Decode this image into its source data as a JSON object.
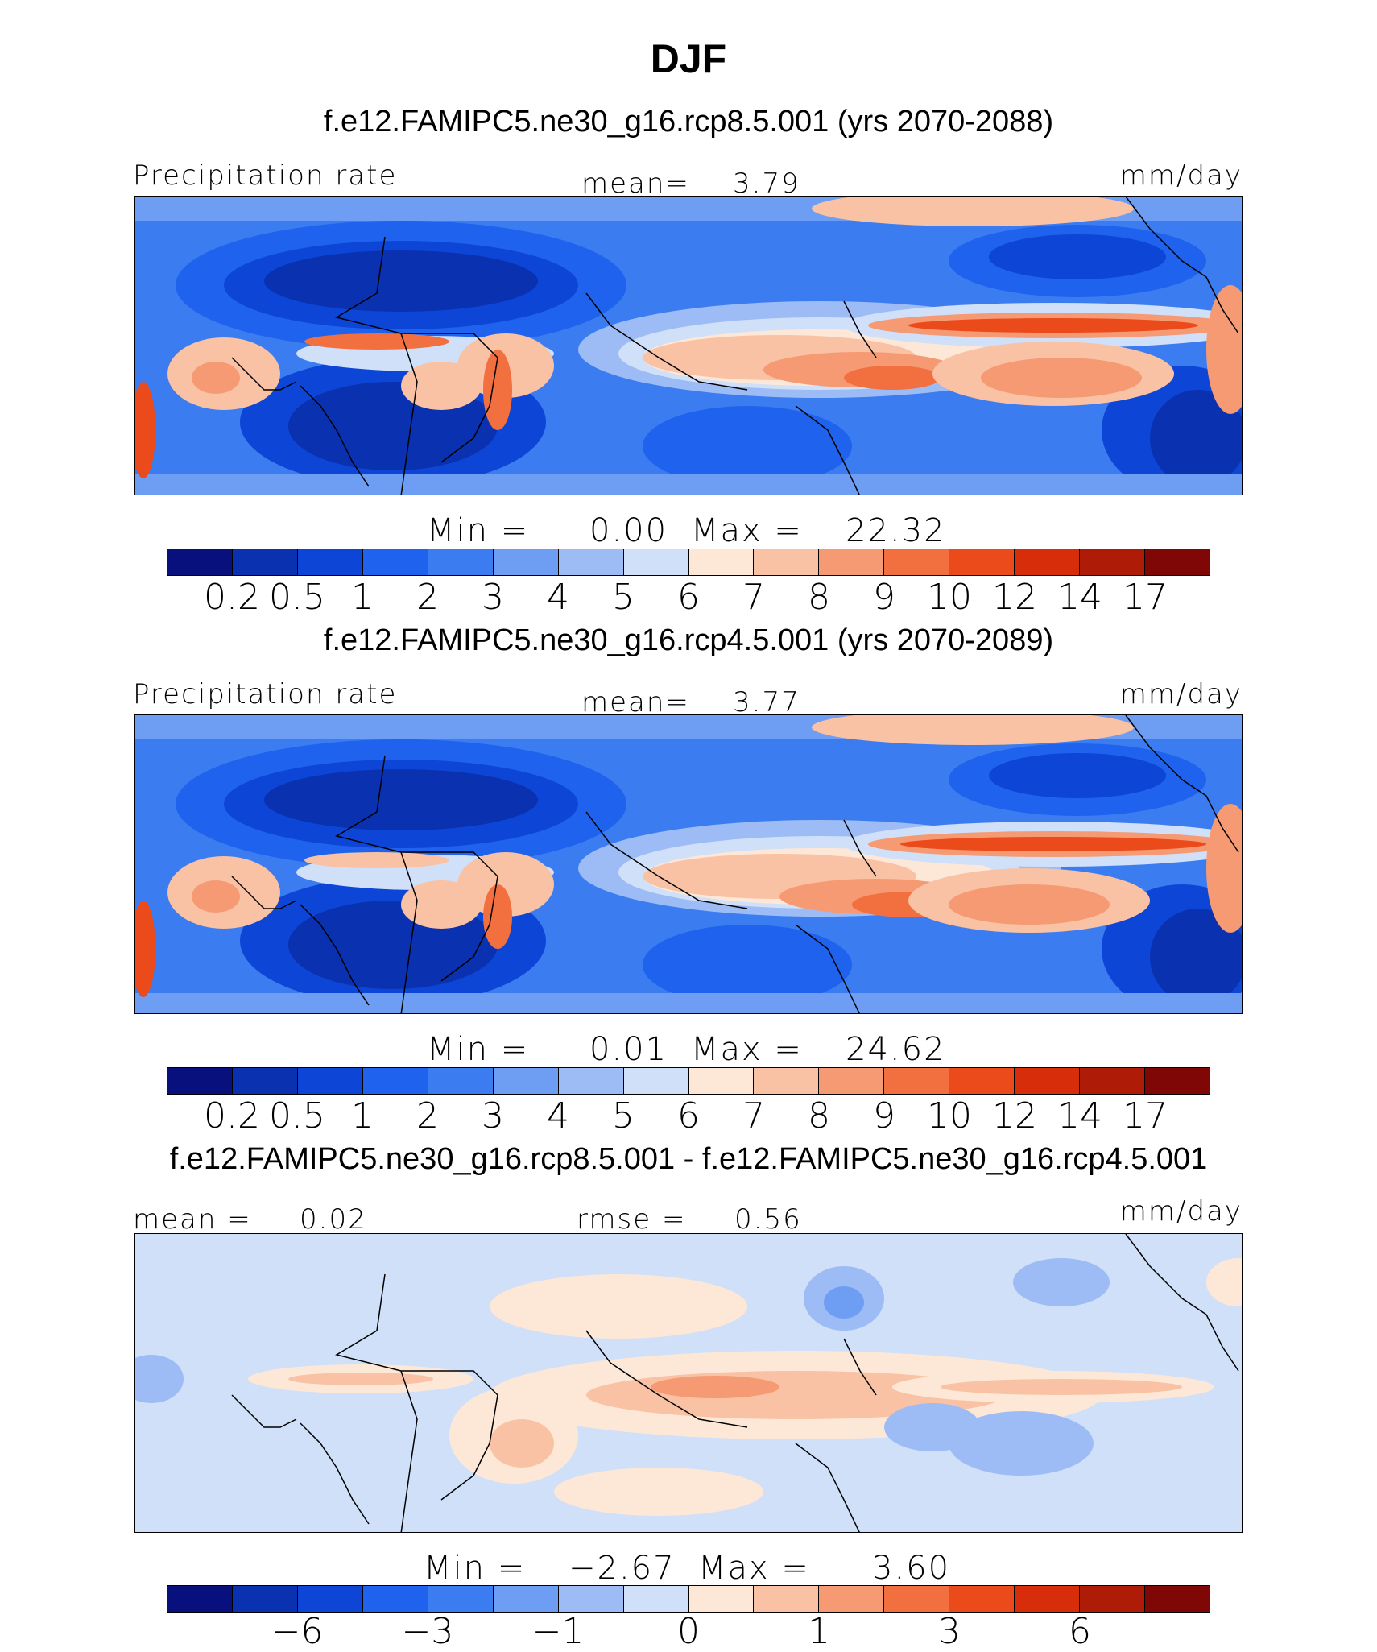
{
  "title": "DJF",
  "colors": {
    "abs_scale": [
      "#08107e",
      "#0a31b0",
      "#0d46d6",
      "#1f62ee",
      "#3b7df0",
      "#6e9ef3",
      "#9dbcf5",
      "#cfe0f8",
      "#fde8d8",
      "#f9c2a5",
      "#f59a73",
      "#f2703f",
      "#eb4a1b",
      "#d72d0a",
      "#ae1b06",
      "#7f0806"
    ],
    "diff_scale": [
      "#08107e",
      "#0a31b0",
      "#0d46d6",
      "#1f62ee",
      "#3b7df0",
      "#6e9ef3",
      "#9dbcf5",
      "#cfe0f8",
      "#fde8d8",
      "#f9c2a5",
      "#f59a73",
      "#f2703f",
      "#eb4a1b",
      "#d72d0a",
      "#ae1b06",
      "#7f0806"
    ]
  },
  "panels": [
    {
      "case": "f.e12.FAMIPC5.ne30_g16.rcp8.5.001 (yrs 2070-2088)",
      "variable": "Precipitation rate",
      "mean_label": "mean=",
      "mean_value": "3.79",
      "units": "mm/day",
      "min_label": "Min  =",
      "min_value": "0.00",
      "max_label": "Max  =",
      "max_value": "22.32",
      "ticks": [
        "0.2",
        "0.5",
        "1",
        "2",
        "3",
        "4",
        "5",
        "6",
        "7",
        "8",
        "9",
        "10",
        "12",
        "14",
        "17"
      ]
    },
    {
      "case": "f.e12.FAMIPC5.ne30_g16.rcp4.5.001 (yrs 2070-2089)",
      "variable": "Precipitation rate",
      "mean_label": "mean=",
      "mean_value": "3.77",
      "units": "mm/day",
      "min_label": "Min  =",
      "min_value": "0.01",
      "max_label": "Max  =",
      "max_value": "24.62",
      "ticks": [
        "0.2",
        "0.5",
        "1",
        "2",
        "3",
        "4",
        "5",
        "6",
        "7",
        "8",
        "9",
        "10",
        "12",
        "14",
        "17"
      ]
    },
    {
      "case": "f.e12.FAMIPC5.ne30_g16.rcp8.5.001 - f.e12.FAMIPC5.ne30_g16.rcp4.5.001",
      "mean_label": "mean =",
      "mean_value": "0.02",
      "rmse_label": "rmse =",
      "rmse_value": "0.56",
      "units": "mm/day",
      "min_label": "Min  =",
      "min_value": "−2.67",
      "max_label": "Max  =",
      "max_value": "3.60",
      "ticks": [
        "−6",
        "−3",
        "−1",
        "0",
        "1",
        "3",
        "6"
      ]
    }
  ]
}
